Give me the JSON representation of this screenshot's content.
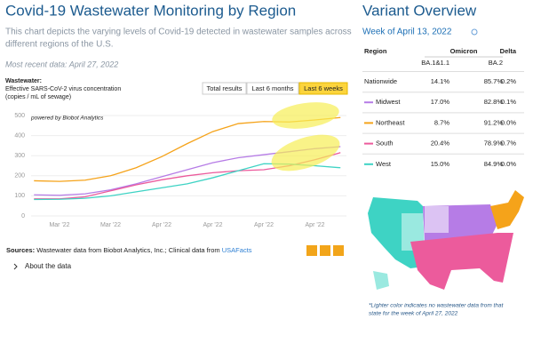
{
  "chart_data": {
    "type": "line",
    "title": "Covid-19 Wastewater Monitoring by Region",
    "subtitle": [
      "This chart depicts the varying levels of Covid-19 detected in wastewater samples across",
      "different regions of the U.S."
    ],
    "recent": "Most recent data: April 27, 2022",
    "y_label": [
      "Wastewater:",
      "Effective SARS-CoV-2 virus concentration",
      "(copies / mL of sewage)"
    ],
    "buttons": [
      "Total results",
      "Last 6 months",
      "Last 6 weeks"
    ],
    "annotation": "powered by Biobot Analytics",
    "categories": [
      null,
      "Mar '22",
      null,
      "Mar '22",
      null,
      "Apr '22",
      null,
      "Apr '22",
      null,
      "Apr '22",
      null,
      "Apr '22",
      null
    ],
    "series": [
      {
        "name": "Northeast",
        "color": "#f5a31a",
        "values": [
          175,
          172,
          178,
          200,
          240,
          295,
          360,
          420,
          460,
          470,
          468,
          478,
          490
        ]
      },
      {
        "name": "Midwest",
        "color": "#b67ce6",
        "values": [
          105,
          103,
          110,
          130,
          160,
          195,
          230,
          265,
          290,
          305,
          320,
          335,
          345
        ]
      },
      {
        "name": "South",
        "color": "#ec5b9c",
        "values": [
          85,
          85,
          95,
          125,
          155,
          180,
          200,
          215,
          225,
          230,
          250,
          280,
          315
        ]
      },
      {
        "name": "West",
        "color": "#3ed3c4",
        "values": [
          82,
          83,
          88,
          100,
          120,
          140,
          160,
          190,
          225,
          260,
          258,
          250,
          240
        ]
      }
    ],
    "ylim": [
      0,
      500
    ],
    "yticks": [
      0,
      100,
      200,
      300,
      400,
      500
    ],
    "grid": true
  },
  "sources": {
    "label": "Sources:",
    "text": " Wastewater data from Biobot Analytics, Inc.; Clinical data from ",
    "link": "USAFacts"
  },
  "about": "About the data",
  "variant": {
    "title": "Variant Overview",
    "week": "Week of April 13, 2022",
    "table": {
      "header": [
        "Region",
        "Omicron",
        "Delta"
      ],
      "subheader": [
        "BA.1&1.1",
        "BA.2"
      ],
      "rows": [
        [
          "Nationwide",
          "14.1%",
          "85.7%",
          "0.2%"
        ],
        [
          "Midwest",
          "17.0%",
          "82.8%",
          "0.1%"
        ],
        [
          "Northeast",
          "8.7%",
          "91.2%",
          "0.0%"
        ],
        [
          "South",
          "20.4%",
          "78.9%",
          "0.7%"
        ],
        [
          "West",
          "15.0%",
          "84.9%",
          "0.0%"
        ]
      ]
    },
    "footnote": [
      "*Lighter color indicates no wastewater data from that",
      "state for the week of April 27, 2022"
    ]
  }
}
